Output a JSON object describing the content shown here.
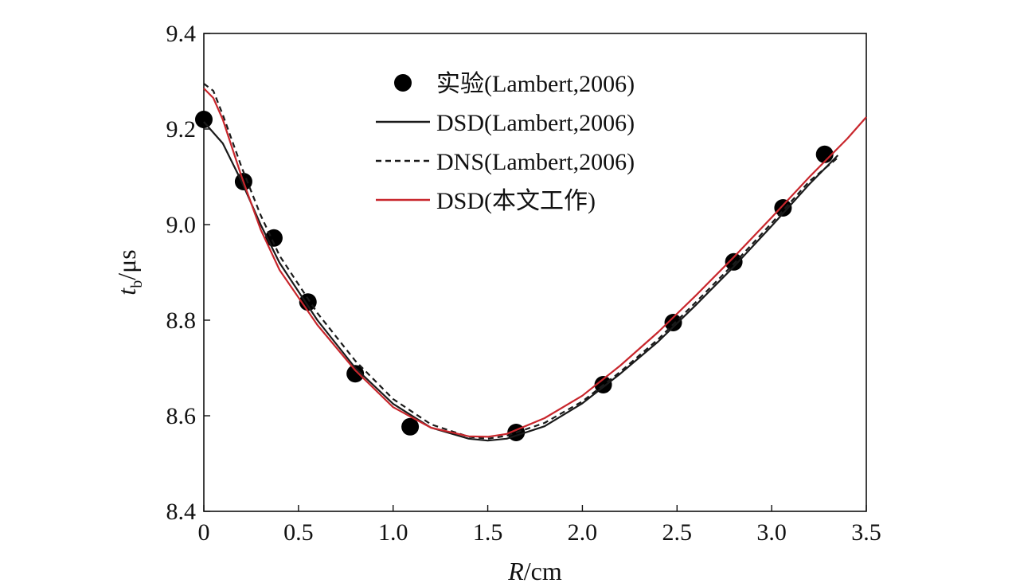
{
  "chart_data": {
    "type": "line",
    "title": "",
    "xlabel": {
      "var": "R",
      "unit": "/cm"
    },
    "ylabel": {
      "var": "t",
      "sub": "b",
      "unit": "/μs"
    },
    "xlim": [
      0,
      3.5
    ],
    "ylim": [
      8.4,
      9.4
    ],
    "xticks": [
      "0",
      "0.5",
      "1.0",
      "1.5",
      "2.0",
      "2.5",
      "3.0",
      "3.5"
    ],
    "yticks": [
      "8.4",
      "8.6",
      "8.8",
      "9.0",
      "9.2",
      "9.4"
    ],
    "legend_position": "top-center",
    "series": [
      {
        "name": "实验(Lambert,2006)",
        "style": "scatter",
        "color": "#000000",
        "x": [
          0.0,
          0.21,
          0.37,
          0.55,
          0.8,
          1.09,
          1.65,
          2.11,
          2.48,
          2.8,
          3.06,
          3.28
        ],
        "y": [
          9.22,
          9.09,
          8.972,
          8.838,
          8.688,
          8.577,
          8.565,
          8.665,
          8.795,
          8.922,
          9.035,
          9.147
        ]
      },
      {
        "name": "DSD(Lambert,2006)",
        "style": "solid",
        "color": "#1a1a1a",
        "x": [
          0.0,
          0.1,
          0.2,
          0.3,
          0.4,
          0.6,
          0.8,
          1.0,
          1.2,
          1.4,
          1.5,
          1.6,
          1.8,
          2.0,
          2.2,
          2.4,
          2.6,
          2.8,
          3.0,
          3.2,
          3.35
        ],
        "y": [
          9.215,
          9.17,
          9.09,
          9.0,
          8.92,
          8.8,
          8.7,
          8.625,
          8.575,
          8.552,
          8.548,
          8.552,
          8.578,
          8.626,
          8.688,
          8.755,
          8.832,
          8.912,
          8.997,
          9.085,
          9.145
        ]
      },
      {
        "name": "DNS(Lambert,2006)",
        "style": "dashed",
        "color": "#1a1a1a",
        "x": [
          0.0,
          0.05,
          0.1,
          0.2,
          0.3,
          0.4,
          0.6,
          0.8,
          1.0,
          1.2,
          1.4,
          1.5,
          1.6,
          1.8,
          2.0,
          2.2,
          2.4,
          2.6,
          2.8,
          3.0,
          3.2,
          3.35
        ],
        "y": [
          9.295,
          9.28,
          9.23,
          9.12,
          9.02,
          8.935,
          8.815,
          8.715,
          8.635,
          8.582,
          8.556,
          8.552,
          8.558,
          8.585,
          8.63,
          8.692,
          8.76,
          8.838,
          8.918,
          9.003,
          9.091,
          9.14
        ]
      },
      {
        "name": "DSD(本文工作)",
        "style": "solid",
        "color": "#c8262c",
        "x": [
          0.0,
          0.05,
          0.1,
          0.2,
          0.3,
          0.4,
          0.6,
          0.8,
          1.0,
          1.2,
          1.4,
          1.5,
          1.6,
          1.8,
          2.0,
          2.2,
          2.4,
          2.6,
          2.8,
          3.0,
          3.2,
          3.4,
          3.5
        ],
        "y": [
          9.285,
          9.265,
          9.22,
          9.1,
          8.99,
          8.905,
          8.79,
          8.695,
          8.618,
          8.575,
          8.557,
          8.556,
          8.562,
          8.595,
          8.642,
          8.705,
          8.775,
          8.852,
          8.932,
          9.015,
          9.1,
          9.18,
          9.225
        ]
      }
    ]
  }
}
